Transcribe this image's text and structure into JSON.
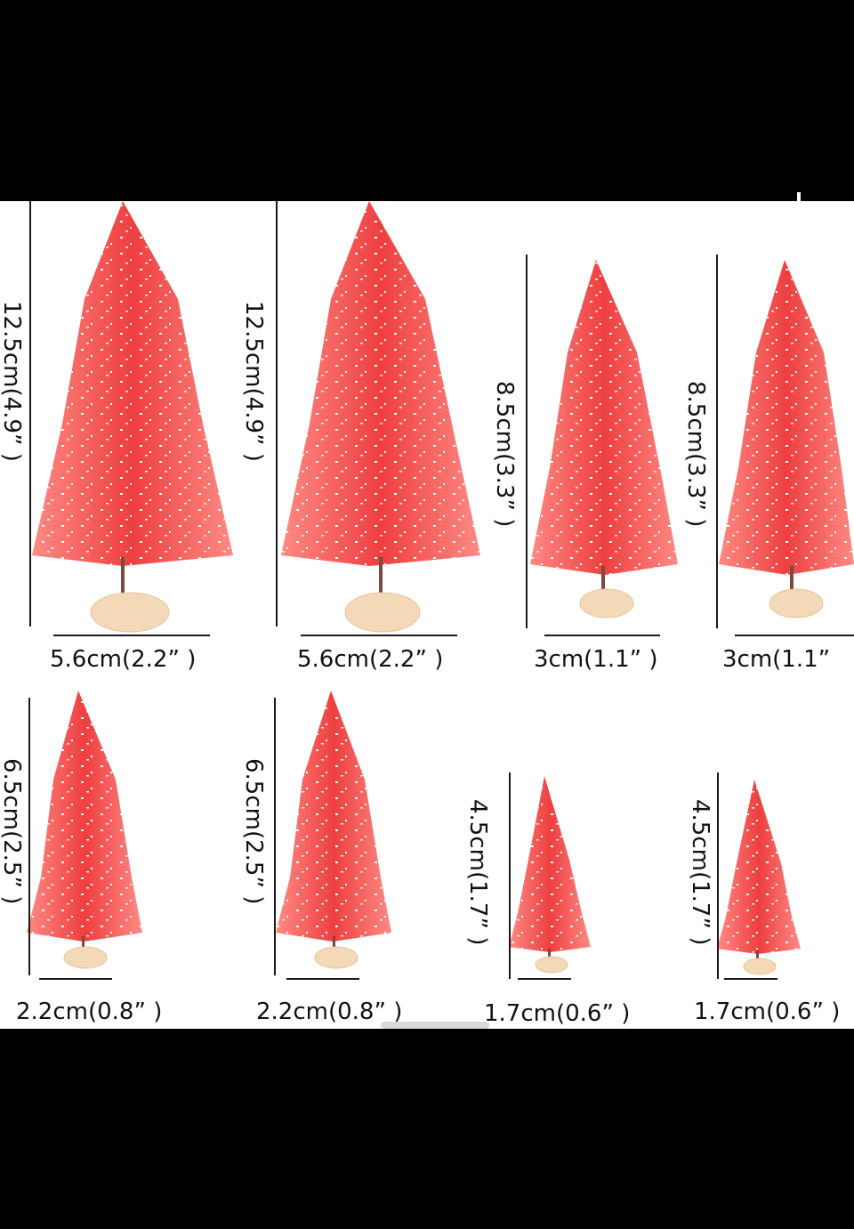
{
  "trees": [
    {
      "height_label": "12.5cm(4.9” )",
      "width_label": "5.6cm(2.2” )"
    },
    {
      "height_label": "12.5cm(4.9” )",
      "width_label": "5.6cm(2.2” )"
    },
    {
      "height_label": "8.5cm(3.3” )",
      "width_label": "3cm(1.1” )"
    },
    {
      "height_label": "8.5cm(3.3” )",
      "width_label": "3cm(1.1”"
    },
    {
      "height_label": "6.5cm(2.5” )",
      "width_label": "2.2cm(0.8” )"
    },
    {
      "height_label": "6.5cm(2.5” )",
      "width_label": "2.2cm(0.8” )"
    },
    {
      "height_label": "4.5cm(1.7” )",
      "width_label": "1.7cm(0.6” )"
    },
    {
      "height_label": "4.5cm(1.7” )",
      "width_label": "1.7cm(0.6” )"
    }
  ],
  "colors": {
    "tree": "#f0504f",
    "tree_light": "#ff8a84",
    "base": "#f3d9b8",
    "snow": "#ffffff"
  }
}
